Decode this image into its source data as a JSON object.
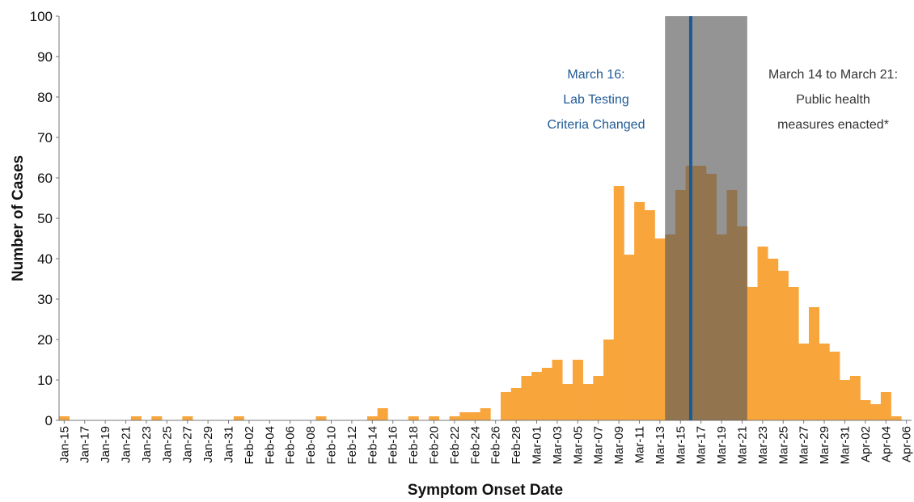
{
  "chart_data": {
    "type": "bar",
    "x_label": "Symptom Onset Date",
    "y_label": "Number of Cases",
    "color": "#f8a53b",
    "grid": false,
    "ylim": [
      0,
      100
    ],
    "yticks": [
      0,
      10,
      20,
      30,
      40,
      50,
      60,
      70,
      80,
      90,
      100
    ],
    "annotations": [
      {
        "lines": [
          "March 16:",
          "Lab Testing",
          "Criteria Changed"
        ],
        "color": "#1f5a96"
      },
      {
        "lines": [
          "March 14 to March 21:",
          "Public health",
          "measures enacted*"
        ],
        "color": "#333333"
      }
    ],
    "categories": [
      "Jan-15",
      null,
      "Jan-17",
      null,
      "Jan-19",
      null,
      "Jan-21",
      null,
      "Jan-23",
      null,
      "Jan-25",
      null,
      "Jan-27",
      null,
      "Jan-29",
      null,
      "Jan-31",
      null,
      "Feb-02",
      null,
      "Feb-04",
      null,
      "Feb-06",
      null,
      "Feb-08",
      null,
      "Feb-10",
      null,
      "Feb-12",
      null,
      "Feb-14",
      null,
      "Feb-16",
      null,
      "Feb-18",
      null,
      "Feb-20",
      null,
      "Feb-22",
      null,
      "Feb-24",
      null,
      "Feb-26",
      null,
      "Feb-28",
      null,
      "Mar-01",
      null,
      "Mar-03",
      null,
      "Mar-05",
      null,
      "Mar-07",
      null,
      "Mar-09",
      null,
      "Mar-11",
      null,
      "Mar-13",
      null,
      "Mar-15",
      null,
      "Mar-17",
      null,
      "Mar-19",
      null,
      "Mar-21",
      null,
      "Mar-23",
      null,
      "Mar-25",
      null,
      "Mar-27",
      null,
      "Mar-29",
      null,
      "Mar-31",
      null,
      "Apr-02",
      null,
      "Apr-04",
      null,
      "Apr-06"
    ],
    "values": [
      1,
      0,
      0,
      0,
      0,
      0,
      0,
      1,
      0,
      1,
      0,
      0,
      1,
      0,
      0,
      0,
      0,
      1,
      0,
      0,
      0,
      0,
      0,
      0,
      0,
      1,
      0,
      0,
      0,
      0,
      1,
      3,
      0,
      0,
      1,
      0,
      1,
      0,
      1,
      2,
      2,
      3,
      0,
      7,
      8,
      11,
      12,
      13,
      15,
      9,
      15,
      9,
      11,
      20,
      58,
      41,
      54,
      52,
      45,
      46,
      57,
      63,
      63,
      61,
      46,
      57,
      48,
      33,
      43,
      40,
      37,
      33,
      19,
      28,
      19,
      17,
      10,
      11,
      5,
      4,
      7,
      1,
      0
    ]
  }
}
